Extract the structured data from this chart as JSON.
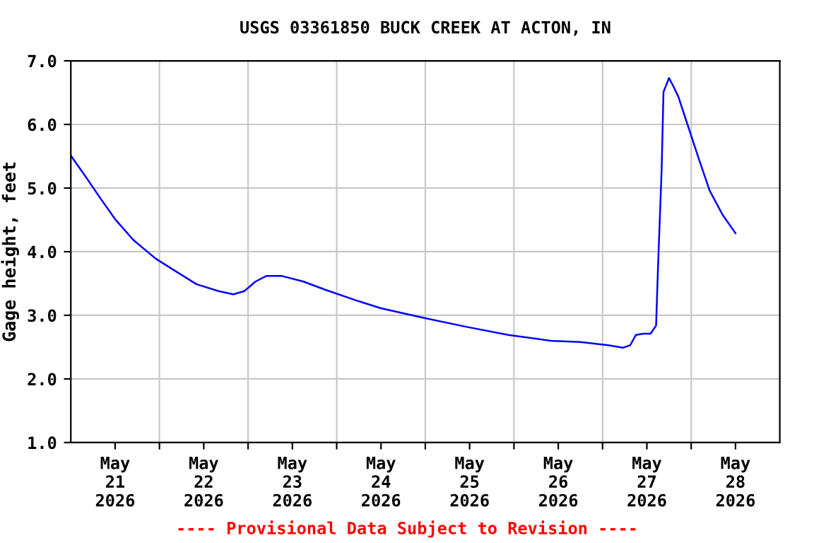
{
  "chart_data": {
    "type": "line",
    "title": "USGS 03361850 BUCK CREEK AT ACTON, IN",
    "ylabel": "Gage height, feet",
    "annotations": [
      "---- Provisional Data Subject to Revision ----"
    ],
    "series": [
      {
        "color": "#0000ff",
        "x": [
          "2026-05-21T00:00",
          "2026-05-21T04:00",
          "2026-05-21T08:00",
          "2026-05-21T12:00",
          "2026-05-21T17:00",
          "2026-05-21T23:00",
          "2026-05-22T05:00",
          "2026-05-22T10:00",
          "2026-05-22T16:00",
          "2026-05-22T20:00",
          "2026-05-22T23:00",
          "2026-05-23T02:00",
          "2026-05-23T05:00",
          "2026-05-23T09:00",
          "2026-05-23T15:00",
          "2026-05-23T21:00",
          "2026-05-24T05:00",
          "2026-05-24T12:00",
          "2026-05-24T23:30",
          "2026-05-25T11:00",
          "2026-05-25T22:30",
          "2026-05-26T10:00",
          "2026-05-26T18:00",
          "2026-05-27T01:30",
          "2026-05-27T05:30",
          "2026-05-27T07:30",
          "2026-05-27T09:00",
          "2026-05-27T11:00",
          "2026-05-27T13:00",
          "2026-05-27T14:30",
          "2026-05-27T15:00",
          "2026-05-27T16:00",
          "2026-05-27T16:30",
          "2026-05-27T18:00",
          "2026-05-27T19:00",
          "2026-05-27T20:30",
          "2026-05-27T23:00",
          "2026-05-28T02:00",
          "2026-05-28T05:00",
          "2026-05-28T08:30",
          "2026-05-28T12:00"
        ],
        "values": [
          5.51,
          5.18,
          4.84,
          4.51,
          4.18,
          3.89,
          3.67,
          3.49,
          3.38,
          3.33,
          3.38,
          3.53,
          3.62,
          3.62,
          3.53,
          3.4,
          3.24,
          3.11,
          2.96,
          2.82,
          2.69,
          2.6,
          2.58,
          2.53,
          2.49,
          2.53,
          2.69,
          2.71,
          2.71,
          2.84,
          3.73,
          5.29,
          6.51,
          6.73,
          6.62,
          6.44,
          6.0,
          5.47,
          4.96,
          4.58,
          4.29
        ]
      }
    ],
    "xlim": [
      "2026-05-21T00:00",
      "2026-05-29T00:00"
    ],
    "xticks": [
      {
        "value": "2026-05-21T12:00",
        "label": "May\n21\n2026"
      },
      {
        "value": "2026-05-22T12:00",
        "label": "May\n22\n2026"
      },
      {
        "value": "2026-05-23T12:00",
        "label": "May\n23\n2026"
      },
      {
        "value": "2026-05-24T12:00",
        "label": "May\n24\n2026"
      },
      {
        "value": "2026-05-25T12:00",
        "label": "May\n25\n2026"
      },
      {
        "value": "2026-05-26T12:00",
        "label": "May\n26\n2026"
      },
      {
        "value": "2026-05-27T12:00",
        "label": "May\n27\n2026"
      },
      {
        "value": "2026-05-28T12:00",
        "label": "May\n28\n2026"
      },
      {
        "value": "2026-05-22T00:00",
        "label": null
      },
      {
        "value": "2026-05-23T00:00",
        "label": null
      },
      {
        "value": "2026-05-24T00:00",
        "label": null
      },
      {
        "value": "2026-05-25T00:00",
        "label": null
      },
      {
        "value": "2026-05-26T00:00",
        "label": null
      },
      {
        "value": "2026-05-27T00:00",
        "label": null
      },
      {
        "value": "2026-05-28T00:00",
        "label": null
      }
    ],
    "ylim": [
      1,
      7
    ],
    "yticks": [
      {
        "value": 1,
        "label": "1.0"
      },
      {
        "value": 2,
        "label": "2.0"
      },
      {
        "value": 3,
        "label": "3.0"
      },
      {
        "value": 4,
        "label": "4.0"
      },
      {
        "value": 5,
        "label": "5.0"
      },
      {
        "value": 6,
        "label": "6.0"
      },
      {
        "value": 7,
        "label": "7.0"
      }
    ],
    "grid": true,
    "legend": false,
    "marker": "none",
    "line_style": "solid"
  }
}
